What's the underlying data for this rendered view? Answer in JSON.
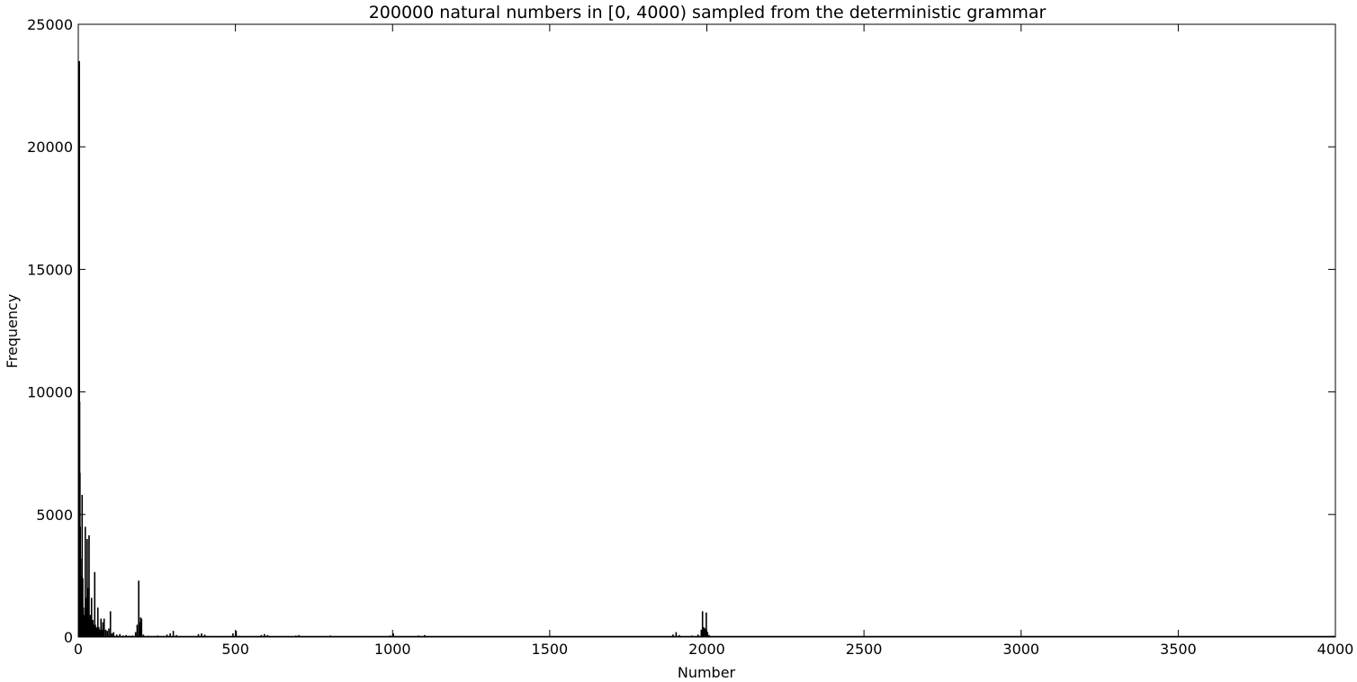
{
  "chart_data": {
    "type": "bar",
    "title": "200000 natural numbers in [0, 4000) sampled from the deterministic grammar",
    "xlabel": "Number",
    "ylabel": "Frequency",
    "xlim": [
      0,
      4000
    ],
    "ylim": [
      0,
      25000
    ],
    "xticks": [
      "0",
      "500",
      "1000",
      "1500",
      "2000",
      "2500",
      "3000",
      "3500",
      "4000"
    ],
    "yticks": [
      "0",
      "5000",
      "10000",
      "15000",
      "20000",
      "25000"
    ],
    "grid": false,
    "bar_color": "#000000",
    "bars": [
      {
        "x": 0,
        "y": 16500
      },
      {
        "x": 1,
        "y": 23500
      },
      {
        "x": 2,
        "y": 9600
      },
      {
        "x": 3,
        "y": 6700
      },
      {
        "x": 4,
        "y": 4500
      },
      {
        "x": 5,
        "y": 3200
      },
      {
        "x": 6,
        "y": 2500
      },
      {
        "x": 7,
        "y": 2100
      },
      {
        "x": 8,
        "y": 1800
      },
      {
        "x": 9,
        "y": 1400
      },
      {
        "x": 10,
        "y": 5800
      },
      {
        "x": 11,
        "y": 1500
      },
      {
        "x": 12,
        "y": 2400
      },
      {
        "x": 14,
        "y": 1200
      },
      {
        "x": 16,
        "y": 900
      },
      {
        "x": 18,
        "y": 800
      },
      {
        "x": 20,
        "y": 4500
      },
      {
        "x": 22,
        "y": 1600
      },
      {
        "x": 24,
        "y": 1200
      },
      {
        "x": 26,
        "y": 4000
      },
      {
        "x": 28,
        "y": 2000
      },
      {
        "x": 30,
        "y": 800
      },
      {
        "x": 32,
        "y": 4150
      },
      {
        "x": 34,
        "y": 700
      },
      {
        "x": 36,
        "y": 900
      },
      {
        "x": 38,
        "y": 600
      },
      {
        "x": 40,
        "y": 1600
      },
      {
        "x": 42,
        "y": 500
      },
      {
        "x": 44,
        "y": 700
      },
      {
        "x": 46,
        "y": 500
      },
      {
        "x": 50,
        "y": 2650
      },
      {
        "x": 52,
        "y": 500
      },
      {
        "x": 55,
        "y": 400
      },
      {
        "x": 58,
        "y": 350
      },
      {
        "x": 60,
        "y": 1200
      },
      {
        "x": 63,
        "y": 400
      },
      {
        "x": 66,
        "y": 300
      },
      {
        "x": 70,
        "y": 750
      },
      {
        "x": 73,
        "y": 300
      },
      {
        "x": 76,
        "y": 600
      },
      {
        "x": 80,
        "y": 750
      },
      {
        "x": 85,
        "y": 300
      },
      {
        "x": 90,
        "y": 250
      },
      {
        "x": 95,
        "y": 350
      },
      {
        "x": 100,
        "y": 1050
      },
      {
        "x": 105,
        "y": 150
      },
      {
        "x": 110,
        "y": 200
      },
      {
        "x": 120,
        "y": 100
      },
      {
        "x": 130,
        "y": 120
      },
      {
        "x": 140,
        "y": 60
      },
      {
        "x": 150,
        "y": 80
      },
      {
        "x": 160,
        "y": 50
      },
      {
        "x": 170,
        "y": 60
      },
      {
        "x": 180,
        "y": 200
      },
      {
        "x": 185,
        "y": 500
      },
      {
        "x": 190,
        "y": 2300
      },
      {
        "x": 193,
        "y": 600
      },
      {
        "x": 196,
        "y": 800
      },
      {
        "x": 199,
        "y": 750
      },
      {
        "x": 205,
        "y": 100
      },
      {
        "x": 220,
        "y": 50
      },
      {
        "x": 240,
        "y": 40
      },
      {
        "x": 250,
        "y": 60
      },
      {
        "x": 270,
        "y": 40
      },
      {
        "x": 280,
        "y": 100
      },
      {
        "x": 290,
        "y": 150
      },
      {
        "x": 300,
        "y": 250
      },
      {
        "x": 310,
        "y": 80
      },
      {
        "x": 340,
        "y": 40
      },
      {
        "x": 380,
        "y": 120
      },
      {
        "x": 390,
        "y": 150
      },
      {
        "x": 400,
        "y": 100
      },
      {
        "x": 420,
        "y": 40
      },
      {
        "x": 470,
        "y": 40
      },
      {
        "x": 490,
        "y": 150
      },
      {
        "x": 500,
        "y": 250
      },
      {
        "x": 510,
        "y": 50
      },
      {
        "x": 550,
        "y": 40
      },
      {
        "x": 580,
        "y": 80
      },
      {
        "x": 590,
        "y": 120
      },
      {
        "x": 600,
        "y": 80
      },
      {
        "x": 650,
        "y": 40
      },
      {
        "x": 690,
        "y": 60
      },
      {
        "x": 700,
        "y": 80
      },
      {
        "x": 780,
        "y": 40
      },
      {
        "x": 800,
        "y": 60
      },
      {
        "x": 900,
        "y": 40
      },
      {
        "x": 990,
        "y": 60
      },
      {
        "x": 1000,
        "y": 150
      },
      {
        "x": 1010,
        "y": 40
      },
      {
        "x": 1080,
        "y": 60
      },
      {
        "x": 1100,
        "y": 80
      },
      {
        "x": 1200,
        "y": 40
      },
      {
        "x": 1300,
        "y": 30
      },
      {
        "x": 1400,
        "y": 30
      },
      {
        "x": 1500,
        "y": 40
      },
      {
        "x": 1600,
        "y": 30
      },
      {
        "x": 1700,
        "y": 30
      },
      {
        "x": 1800,
        "y": 40
      },
      {
        "x": 1890,
        "y": 100
      },
      {
        "x": 1900,
        "y": 200
      },
      {
        "x": 1910,
        "y": 80
      },
      {
        "x": 1950,
        "y": 60
      },
      {
        "x": 1970,
        "y": 100
      },
      {
        "x": 1980,
        "y": 300
      },
      {
        "x": 1984,
        "y": 1050
      },
      {
        "x": 1988,
        "y": 400
      },
      {
        "x": 1992,
        "y": 350
      },
      {
        "x": 1996,
        "y": 1000
      },
      {
        "x": 2000,
        "y": 200
      },
      {
        "x": 2005,
        "y": 80
      },
      {
        "x": 2100,
        "y": 30
      },
      {
        "x": 2500,
        "y": 30
      },
      {
        "x": 3000,
        "y": 40
      },
      {
        "x": 3100,
        "y": 30
      },
      {
        "x": 3500,
        "y": 30
      },
      {
        "x": 3900,
        "y": 40
      },
      {
        "x": 3990,
        "y": 50
      }
    ]
  }
}
